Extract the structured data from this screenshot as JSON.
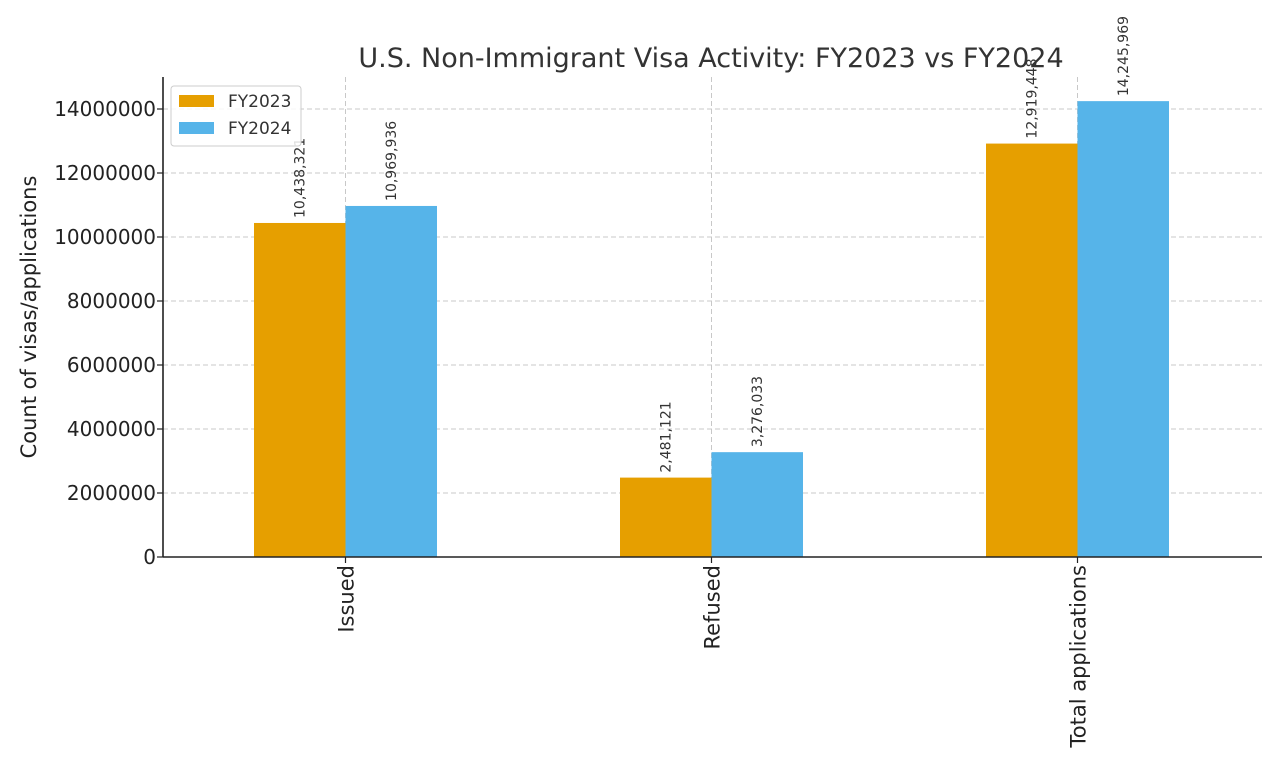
{
  "chart_data": {
    "type": "bar",
    "title": "U.S. Non-Immigrant Visa Activity: FY2023 vs FY2024",
    "xlabel": "",
    "ylabel": "Count of visas/applications",
    "categories": [
      "Issued",
      "Refused",
      "Total applications"
    ],
    "series": [
      {
        "name": "FY2023",
        "color": "#E69F00",
        "values": [
          10438321,
          2481121,
          12919448
        ],
        "value_labels": [
          "10,438,321",
          "2,481,121",
          "12,919,448"
        ]
      },
      {
        "name": "FY2024",
        "color": "#56B4E9",
        "values": [
          10969936,
          3276033,
          14245969
        ],
        "value_labels": [
          "10,969,936",
          "3,276,033",
          "14,245,969"
        ]
      }
    ],
    "ylim": [
      0,
      15000000
    ],
    "yticks": [
      0,
      2000000,
      4000000,
      6000000,
      8000000,
      10000000,
      12000000,
      14000000
    ],
    "ytick_labels": [
      "0",
      "2000000",
      "4000000",
      "6000000",
      "8000000",
      "10000000",
      "12000000",
      "14000000"
    ],
    "grid": true,
    "legend_position": "top-left"
  }
}
